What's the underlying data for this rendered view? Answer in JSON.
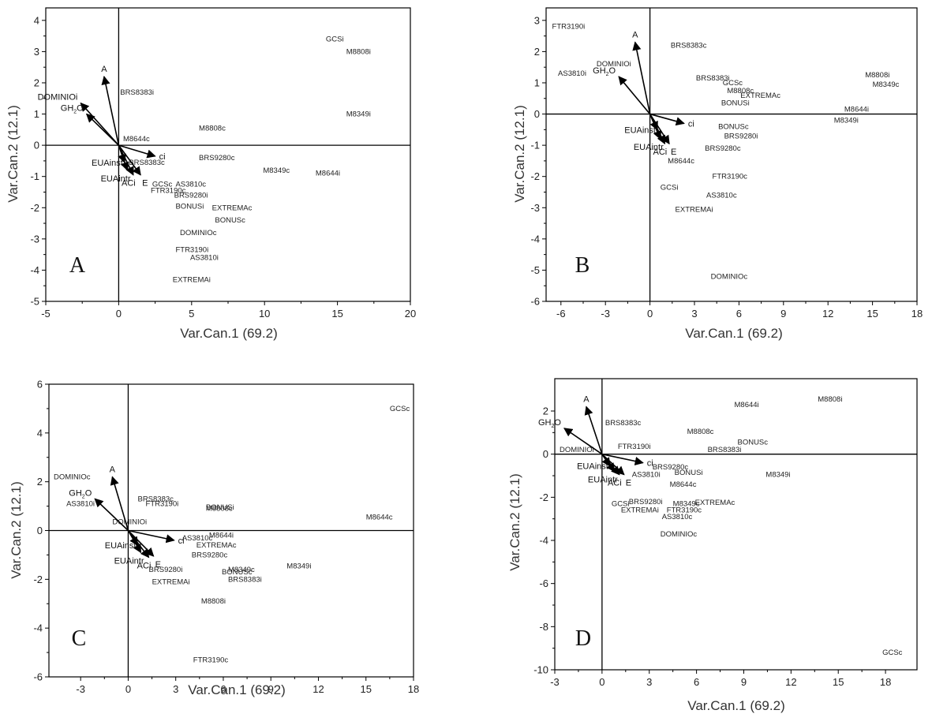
{
  "chart_data": [
    {
      "type": "scatter",
      "panel_label": "A",
      "xlabel": "Var.Can.1 (69.2)",
      "ylabel": "Var.Can.2 (12.1)",
      "xlim": [
        -5,
        20
      ],
      "ylim": [
        -5,
        4.4
      ],
      "xticks": [
        -5,
        0,
        5,
        10,
        15,
        20
      ],
      "yticks": [
        -5,
        -4,
        -3,
        -2,
        -1,
        0,
        1,
        2,
        3,
        4
      ],
      "points": [
        {
          "label": "GCSi",
          "x": 14.2,
          "y": 3.4
        },
        {
          "label": "M8808i",
          "x": 15.6,
          "y": 3.0
        },
        {
          "label": "BRS8383i",
          "x": 0.1,
          "y": 1.7
        },
        {
          "label": "M8349i",
          "x": 15.6,
          "y": 1.0
        },
        {
          "label": "M8808c",
          "x": 5.5,
          "y": 0.55
        },
        {
          "label": "M8644c",
          "x": 0.3,
          "y": 0.2
        },
        {
          "label": "BRS9280c",
          "x": 5.5,
          "y": -0.4
        },
        {
          "label": "BRS8383c",
          "x": 0.7,
          "y": -0.55
        },
        {
          "label": "M8349c",
          "x": 9.9,
          "y": -0.8
        },
        {
          "label": "M8644i",
          "x": 13.5,
          "y": -0.9
        },
        {
          "label": "GCSc",
          "x": 2.3,
          "y": -1.25
        },
        {
          "label": "AS3810c",
          "x": 3.9,
          "y": -1.25
        },
        {
          "label": "FTR3190c",
          "x": 2.2,
          "y": -1.45
        },
        {
          "label": "BRS9280i",
          "x": 3.8,
          "y": -1.6
        },
        {
          "label": "BONUSi",
          "x": 3.9,
          "y": -1.95
        },
        {
          "label": "EXTREMAc",
          "x": 6.4,
          "y": -2.0
        },
        {
          "label": "BONUSc",
          "x": 6.6,
          "y": -2.4
        },
        {
          "label": "DOMINIOc",
          "x": 4.2,
          "y": -2.8
        },
        {
          "label": "FTR3190i",
          "x": 3.9,
          "y": -3.35
        },
        {
          "label": "AS3810i",
          "x": 4.9,
          "y": -3.6
        },
        {
          "label": "EXTREMAi",
          "x": 3.7,
          "y": -4.3
        }
      ],
      "vectors": [
        {
          "label": "A",
          "x": -1.0,
          "y": 2.2
        },
        {
          "label": "DOMINIOi",
          "x": -2.6,
          "y": 1.35
        },
        {
          "label": "GH2O",
          "x": -2.2,
          "y": 1.0
        },
        {
          "label": "ci",
          "x": 2.5,
          "y": -0.35
        },
        {
          "label": "EUAinst",
          "x": 0.4,
          "y": -0.55
        },
        {
          "label": "EUAintr",
          "x": 0.6,
          "y": -0.8
        },
        {
          "label": "ACi",
          "x": 1.0,
          "y": -0.95
        },
        {
          "label": "E",
          "x": 1.5,
          "y": -0.95
        }
      ],
      "vector_labels": {
        "A": "A",
        "DOMINIOi": "DOMINIOi",
        "GH2O": "GH",
        "GH2O_sub": "2",
        "GH2O_tail": "O",
        "ci": "ci",
        "EUAinst": "EUAinst",
        "EUAintr": "EUAintr",
        "ACi": "ACi",
        "E": "E"
      }
    },
    {
      "type": "scatter",
      "panel_label": "B",
      "xlabel": "Var.Can.1 (69.2)",
      "ylabel": "Var.Can.2 (12.1)",
      "xlim": [
        -7,
        18
      ],
      "ylim": [
        -6,
        3.4
      ],
      "xticks": [
        -6,
        -3,
        0,
        3,
        6,
        9,
        12,
        15,
        18
      ],
      "yticks": [
        -6,
        -5,
        -4,
        -3,
        -2,
        -1,
        0,
        1,
        2,
        3
      ],
      "points": [
        {
          "label": "FTR3190i",
          "x": -6.6,
          "y": 2.8
        },
        {
          "label": "BRS8383c",
          "x": 1.4,
          "y": 2.2
        },
        {
          "label": "DOMINIOi",
          "x": -3.6,
          "y": 1.6
        },
        {
          "label": "AS3810i",
          "x": -6.2,
          "y": 1.3
        },
        {
          "label": "BRS8383i",
          "x": 3.1,
          "y": 1.15
        },
        {
          "label": "M8808i",
          "x": 14.5,
          "y": 1.25
        },
        {
          "label": "GCSc",
          "x": 4.9,
          "y": 1.0
        },
        {
          "label": "M8349c",
          "x": 15.0,
          "y": 0.95
        },
        {
          "label": "M8808c",
          "x": 5.2,
          "y": 0.75
        },
        {
          "label": "EXTREMAc",
          "x": 6.1,
          "y": 0.6
        },
        {
          "label": "BONUSi",
          "x": 4.8,
          "y": 0.35
        },
        {
          "label": "M8644i",
          "x": 13.1,
          "y": 0.15
        },
        {
          "label": "M8349i",
          "x": 12.4,
          "y": -0.2
        },
        {
          "label": "BONUSc",
          "x": 4.6,
          "y": -0.4
        },
        {
          "label": "BRS9280i",
          "x": 5.0,
          "y": -0.7
        },
        {
          "label": "BRS9280c",
          "x": 3.7,
          "y": -1.1
        },
        {
          "label": "M8644c",
          "x": 1.2,
          "y": -1.5
        },
        {
          "label": "FTR3190c",
          "x": 4.2,
          "y": -2.0
        },
        {
          "label": "GCSi",
          "x": 0.7,
          "y": -2.35
        },
        {
          "label": "AS3810c",
          "x": 3.8,
          "y": -2.6
        },
        {
          "label": "EXTREMAi",
          "x": 1.7,
          "y": -3.05
        },
        {
          "label": "DOMINIOc",
          "x": 4.1,
          "y": -5.2
        }
      ],
      "vectors": [
        {
          "label": "A",
          "x": -1.0,
          "y": 2.3
        },
        {
          "label": "GH2O",
          "x": -2.1,
          "y": 1.2
        },
        {
          "label": "ci",
          "x": 2.3,
          "y": -0.3
        },
        {
          "label": "EUAinst",
          "x": 0.5,
          "y": -0.5
        },
        {
          "label": "EUAintr",
          "x": 0.7,
          "y": -0.8
        },
        {
          "label": "ACi",
          "x": 1.0,
          "y": -0.95
        },
        {
          "label": "E",
          "x": 1.3,
          "y": -0.95
        }
      ],
      "vector_labels": {
        "A": "A",
        "GH2O": "GH",
        "GH2O_sub": "2",
        "GH2O_tail": "O",
        "ci": "ci",
        "EUAinst": "EUAinst",
        "EUAintr": "EUAintr",
        "ACi": "ACi",
        "E": "E"
      }
    },
    {
      "type": "scatter",
      "panel_label": "C",
      "xlabel": "Var.Can.1 (69.2)",
      "ylabel": "Var.Can.2 (12.1)",
      "xlim": [
        -5,
        18
      ],
      "ylim": [
        -6,
        6
      ],
      "xticks": [
        -3,
        0,
        3,
        6,
        9,
        12,
        15,
        18
      ],
      "yticks": [
        -6,
        -4,
        -2,
        0,
        2,
        4,
        6
      ],
      "points": [
        {
          "label": "GCSc",
          "x": 16.5,
          "y": 5.0
        },
        {
          "label": "DOMINIOc",
          "x": -4.7,
          "y": 2.2
        },
        {
          "label": "BRS8383c",
          "x": 0.6,
          "y": 1.3
        },
        {
          "label": "FTR3190i",
          "x": 1.1,
          "y": 1.1
        },
        {
          "label": "BONUSi",
          "x": 4.9,
          "y": 0.95
        },
        {
          "label": "M8808c",
          "x": 4.9,
          "y": 0.9
        },
        {
          "label": "AS3810i",
          "x": -3.9,
          "y": 1.1
        },
        {
          "label": "DOMINIOi",
          "x": -1.0,
          "y": 0.35
        },
        {
          "label": "M8644c",
          "x": 15.0,
          "y": 0.55
        },
        {
          "label": "M8644i",
          "x": 5.1,
          "y": -0.2
        },
        {
          "label": "AS3810c",
          "x": 3.4,
          "y": -0.3
        },
        {
          "label": "EXTREMAc",
          "x": 4.3,
          "y": -0.6
        },
        {
          "label": "BRS9280c",
          "x": 4.0,
          "y": -1.0
        },
        {
          "label": "BRS9280i",
          "x": 1.3,
          "y": -1.6
        },
        {
          "label": "M8349c",
          "x": 6.3,
          "y": -1.6
        },
        {
          "label": "BONUSc",
          "x": 5.9,
          "y": -1.7
        },
        {
          "label": "M8349i",
          "x": 10.0,
          "y": -1.45
        },
        {
          "label": "BRS8383i",
          "x": 6.3,
          "y": -2.0
        },
        {
          "label": "EXTREMAi",
          "x": 1.5,
          "y": -2.1
        },
        {
          "label": "M8808i",
          "x": 4.6,
          "y": -2.9
        },
        {
          "label": "FTR3190c",
          "x": 4.1,
          "y": -5.3
        }
      ],
      "vectors": [
        {
          "label": "A",
          "x": -1.0,
          "y": 2.2
        },
        {
          "label": "GH2O",
          "x": -2.1,
          "y": 1.3
        },
        {
          "label": "ci",
          "x": 2.9,
          "y": -0.4
        },
        {
          "label": "EUAinst",
          "x": 0.6,
          "y": -0.6
        },
        {
          "label": "EUAintr",
          "x": 0.8,
          "y": -0.9
        },
        {
          "label": "ACi",
          "x": 1.3,
          "y": -1.1
        },
        {
          "label": "E",
          "x": 1.6,
          "y": -1.05
        }
      ],
      "vector_labels": {
        "A": "A",
        "GH2O": "GH",
        "GH2O_sub": "2",
        "GH2O_tail": "O",
        "ci": "ci",
        "EUAinst": "EUAinst",
        "EUAintr": "EUAintr",
        "ACi": "ACi",
        "E": "E"
      }
    },
    {
      "type": "scatter",
      "panel_label": "D",
      "xlabel": "Var.Can.1 (69.2)",
      "ylabel": "Var.Can.2 (12.1)",
      "xlim": [
        -3,
        20
      ],
      "ylim": [
        -10,
        3.5
      ],
      "xticks": [
        -3,
        0,
        3,
        6,
        9,
        12,
        15,
        18
      ],
      "yticks": [
        -10,
        -8,
        -6,
        -4,
        -2,
        0,
        2
      ],
      "points": [
        {
          "label": "M8808i",
          "x": 13.7,
          "y": 2.55
        },
        {
          "label": "M8644i",
          "x": 8.4,
          "y": 2.3
        },
        {
          "label": "BRS8383c",
          "x": 0.2,
          "y": 1.45
        },
        {
          "label": "M8808c",
          "x": 5.4,
          "y": 1.05
        },
        {
          "label": "BONUSc",
          "x": 8.6,
          "y": 0.55
        },
        {
          "label": "FTR3190i",
          "x": 1.0,
          "y": 0.35
        },
        {
          "label": "BRS8383i",
          "x": 6.7,
          "y": 0.2
        },
        {
          "label": "DOMINIOi",
          "x": -2.7,
          "y": 0.2
        },
        {
          "label": "BRS9280c",
          "x": 3.2,
          "y": -0.6
        },
        {
          "label": "BONUSi",
          "x": 4.6,
          "y": -0.85
        },
        {
          "label": "M8349i",
          "x": 10.4,
          "y": -0.95
        },
        {
          "label": "AS3810i",
          "x": 1.9,
          "y": -0.95
        },
        {
          "label": "M8644c",
          "x": 4.3,
          "y": -1.4
        },
        {
          "label": "BRS9280i",
          "x": 1.7,
          "y": -2.2
        },
        {
          "label": "GCSi",
          "x": 0.6,
          "y": -2.3
        },
        {
          "label": "M8349c",
          "x": 4.5,
          "y": -2.3
        },
        {
          "label": "EXTREMAc",
          "x": 5.9,
          "y": -2.25
        },
        {
          "label": "FTR3190c",
          "x": 4.1,
          "y": -2.6
        },
        {
          "label": "EXTREMAi",
          "x": 1.2,
          "y": -2.6
        },
        {
          "label": "AS3810c",
          "x": 3.8,
          "y": -2.9
        },
        {
          "label": "DOMINIOc",
          "x": 3.7,
          "y": -3.7
        },
        {
          "label": "GCSc",
          "x": 17.8,
          "y": -9.2
        }
      ],
      "vectors": [
        {
          "label": "A",
          "x": -1.0,
          "y": 2.2
        },
        {
          "label": "GH2O",
          "x": -2.4,
          "y": 1.2
        },
        {
          "label": "ci",
          "x": 2.6,
          "y": -0.4
        },
        {
          "label": "EUAinst",
          "x": 0.5,
          "y": -0.55
        },
        {
          "label": "EUAintr",
          "x": 0.8,
          "y": -0.8
        },
        {
          "label": "ACi",
          "x": 1.1,
          "y": -0.95
        },
        {
          "label": "E",
          "x": 1.4,
          "y": -0.95
        }
      ],
      "vector_labels": {
        "A": "A",
        "GH2O": "GH",
        "GH2O_sub": "2",
        "GH2O_tail": "O",
        "ci": "ci",
        "EUAinst": "EUAinst",
        "EUAintr": "EUAintr",
        "ACi": "ACi",
        "E": "E"
      }
    }
  ]
}
